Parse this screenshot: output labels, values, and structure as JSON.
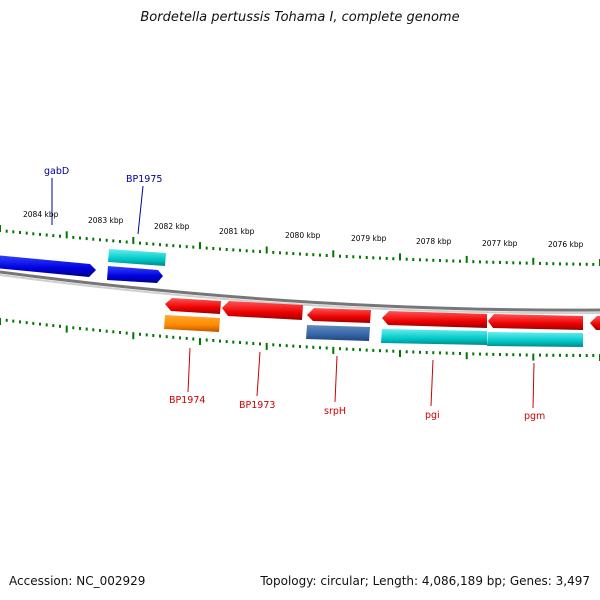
{
  "title": "Bordetella pertussis Tohama I, complete genome",
  "footer": {
    "accession": "Accession: NC_002929",
    "summary": "Topology: circular; Length: 4,086,189 bp; Genes: 3,497"
  },
  "scale_labels": [
    "2084 kbp",
    "2083 kbp",
    "2082 kbp",
    "2081 kbp",
    "2080 kbp",
    "2079 kbp",
    "2078 kbp",
    "2077 kbp",
    "2076 kbp"
  ],
  "genes_forward": [
    {
      "label": "gabD",
      "color": "#0000ff"
    },
    {
      "label": "BP1975",
      "color": "#00cccc"
    },
    {
      "label": "",
      "color": "#0000ff"
    }
  ],
  "genes_reverse": [
    {
      "label": "BP1974",
      "color": "#ff8800"
    },
    {
      "label": "BP1973",
      "color": "#ff0000"
    },
    {
      "label": "srpH",
      "color": "#4477aa"
    },
    {
      "label": "pgi",
      "color": "#00cccc"
    },
    {
      "label": "pgm",
      "color": "#00cccc"
    }
  ],
  "colors": {
    "forward_label": "#000099",
    "reverse_label": "#cc0000",
    "tick": "#007700",
    "backbone": "#888888"
  }
}
